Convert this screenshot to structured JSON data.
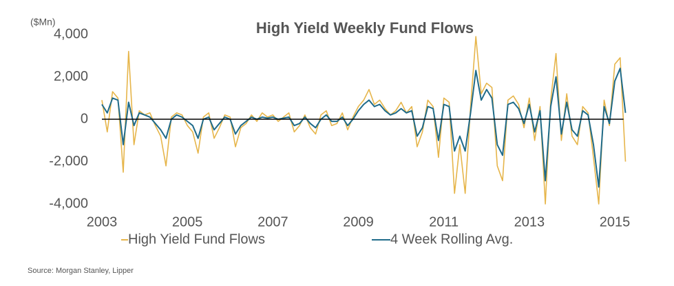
{
  "chart_data": {
    "type": "line",
    "title": "High Yield Weekly Fund Flows",
    "y_label": "($Mn)",
    "source": "Source: Morgan Stanley, Lipper",
    "x": [
      2003.0,
      2003.125,
      2003.25,
      2003.375,
      2003.5,
      2003.625,
      2003.75,
      2003.875,
      2004.0,
      2004.125,
      2004.25,
      2004.375,
      2004.5,
      2004.625,
      2004.75,
      2004.875,
      2005.0,
      2005.125,
      2005.25,
      2005.375,
      2005.5,
      2005.625,
      2005.75,
      2005.875,
      2006.0,
      2006.125,
      2006.25,
      2006.375,
      2006.5,
      2006.625,
      2006.75,
      2006.875,
      2007.0,
      2007.125,
      2007.25,
      2007.375,
      2007.5,
      2007.625,
      2007.75,
      2007.875,
      2008.0,
      2008.125,
      2008.25,
      2008.375,
      2008.5,
      2008.625,
      2008.75,
      2008.875,
      2009.0,
      2009.125,
      2009.25,
      2009.375,
      2009.5,
      2009.625,
      2009.75,
      2009.875,
      2010.0,
      2010.125,
      2010.25,
      2010.375,
      2010.5,
      2010.625,
      2010.75,
      2010.875,
      2011.0,
      2011.125,
      2011.25,
      2011.375,
      2011.5,
      2011.625,
      2011.75,
      2011.875,
      2012.0,
      2012.125,
      2012.25,
      2012.375,
      2012.5,
      2012.625,
      2012.75,
      2012.875,
      2013.0,
      2013.125,
      2013.25,
      2013.375,
      2013.5,
      2013.625,
      2013.75,
      2013.875,
      2014.0,
      2014.125,
      2014.25,
      2014.375,
      2014.5,
      2014.625,
      2014.75,
      2014.875,
      2015.0,
      2015.125,
      2015.25
    ],
    "series": [
      {
        "name": "High Yield Fund Flows",
        "color": "#e6b54a",
        "values": [
          900,
          -600,
          1300,
          1000,
          -2500,
          3200,
          -1200,
          400,
          200,
          300,
          -300,
          -800,
          -2200,
          100,
          300,
          200,
          -300,
          -600,
          -1600,
          100,
          300,
          -900,
          -400,
          200,
          100,
          -1300,
          -400,
          -200,
          200,
          -100,
          300,
          100,
          200,
          -100,
          100,
          300,
          -600,
          -300,
          200,
          -400,
          -700,
          200,
          400,
          -300,
          -200,
          300,
          -500,
          100,
          600,
          900,
          1400,
          700,
          900,
          500,
          200,
          400,
          800,
          300,
          600,
          -1300,
          -600,
          900,
          600,
          -1800,
          1000,
          800,
          -3500,
          -1200,
          -3500,
          600,
          3900,
          1200,
          1700,
          1500,
          -2200,
          -2900,
          900,
          1100,
          700,
          -400,
          1000,
          -1000,
          600,
          -4000,
          900,
          3100,
          -1000,
          1200,
          -800,
          -1200,
          600,
          300,
          -1800,
          -4000,
          900,
          -300,
          2600,
          2900,
          -2000
        ]
      },
      {
        "name": "4 Week Rolling Avg.",
        "color": "#1f6b8a",
        "values": [
          700,
          300,
          1000,
          900,
          -1200,
          800,
          -300,
          300,
          200,
          100,
          -200,
          -500,
          -900,
          0,
          200,
          100,
          -100,
          -300,
          -900,
          0,
          100,
          -500,
          -200,
          100,
          0,
          -700,
          -300,
          -100,
          100,
          0,
          100,
          50,
          100,
          0,
          50,
          100,
          -300,
          -200,
          100,
          -200,
          -400,
          0,
          200,
          -100,
          -100,
          100,
          -300,
          0,
          400,
          700,
          900,
          600,
          700,
          400,
          200,
          300,
          500,
          300,
          400,
          -800,
          -400,
          600,
          500,
          -1000,
          700,
          600,
          -1500,
          -800,
          -1500,
          300,
          2300,
          900,
          1400,
          1000,
          -1200,
          -1700,
          700,
          800,
          500,
          -200,
          700,
          -600,
          400,
          -2900,
          600,
          2000,
          -700,
          800,
          -500,
          -800,
          400,
          200,
          -1200,
          -3200,
          600,
          -200,
          1800,
          2400,
          300
        ]
      }
    ],
    "xlim": [
      2003,
      2015.3
    ],
    "xticks": [
      2003,
      2005,
      2007,
      2009,
      2011,
      2013,
      2015
    ],
    "ylim": [
      -4000,
      4000
    ],
    "yticks": [
      {
        "value": -4000,
        "label": "-4,000"
      },
      {
        "value": -2000,
        "label": "-2,000"
      },
      0,
      {
        "value": 2000,
        "label": "2,000"
      },
      {
        "value": 4000,
        "label": "4,000"
      }
    ],
    "grid": false,
    "zero_line": true,
    "legend": "bottom"
  }
}
